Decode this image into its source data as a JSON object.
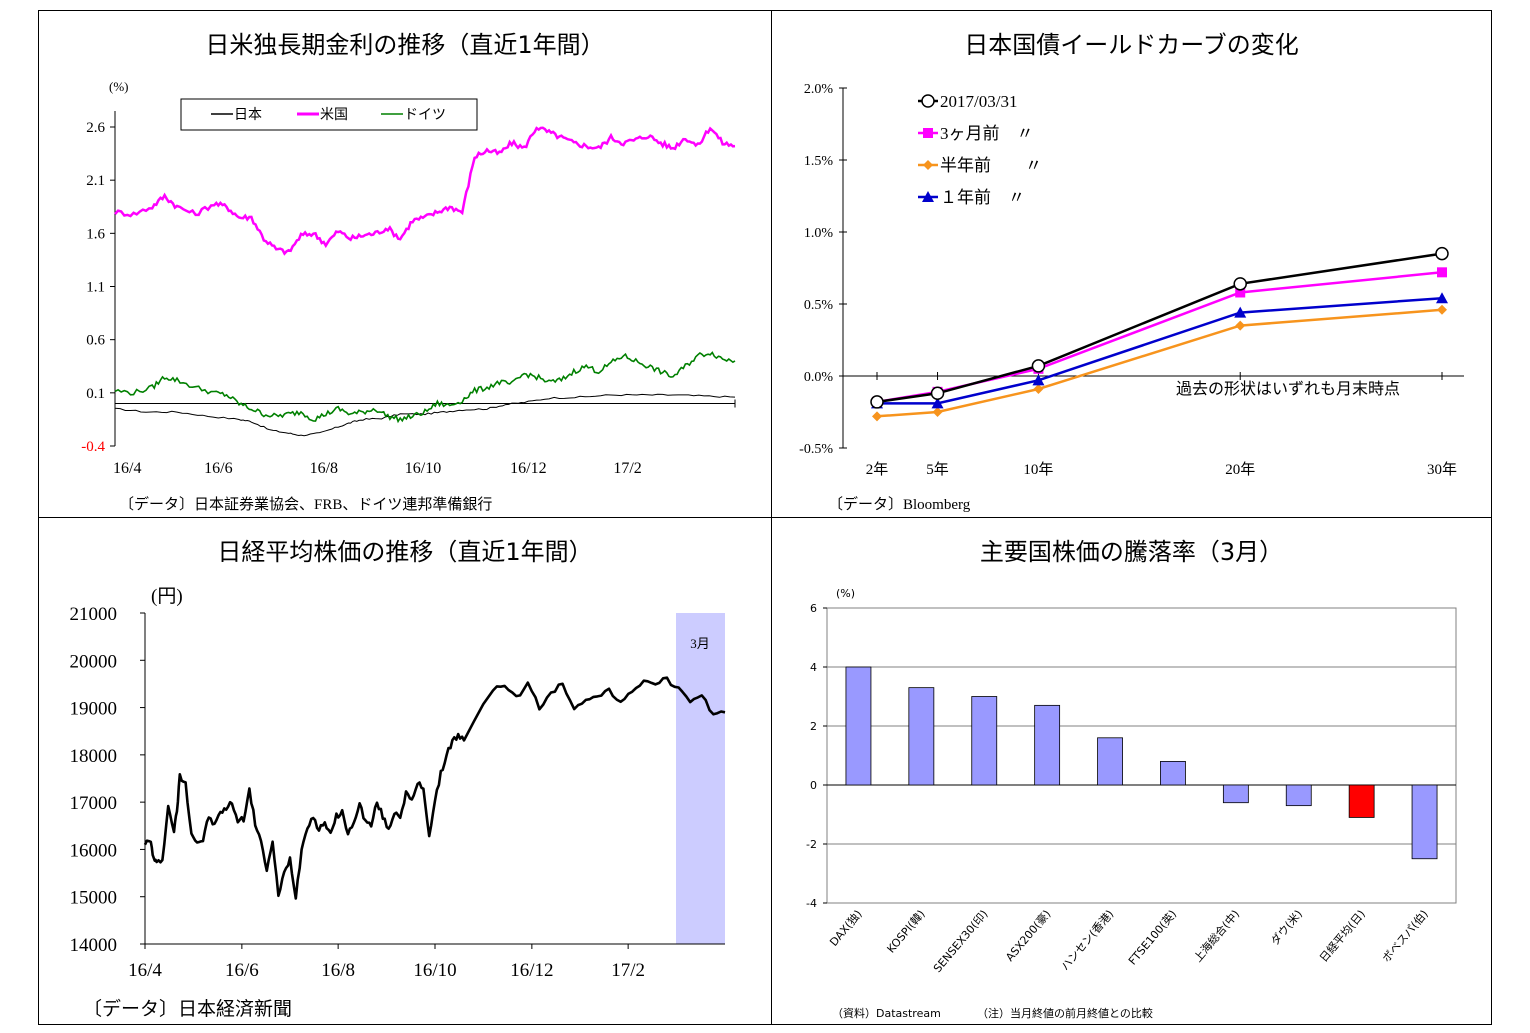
{
  "chart_data": [
    {
      "type": "line",
      "title": "日米独長期金利の推移（直近1年間）",
      "ylabel": "(%)",
      "ylim": [
        -0.4,
        2.6
      ],
      "yticks": [
        "2.6",
        "2.1",
        "1.6",
        "1.1",
        "0.6",
        "0.1",
        "-0.4"
      ],
      "xticks": [
        "16/4",
        "16/6",
        "16/8",
        "16/10",
        "16/12",
        "17/2"
      ],
      "source": "〔データ〕日本証券業協会、FRB、ドイツ連邦準備銀行",
      "series": [
        {
          "name": "日本",
          "color": "#000000",
          "x": [
            0,
            0.05,
            0.1,
            0.15,
            0.2,
            0.22,
            0.25,
            0.28,
            0.3,
            0.33,
            0.36,
            0.38,
            0.4,
            0.43,
            0.46,
            0.5,
            0.53,
            0.56,
            0.6,
            0.63,
            0.66,
            0.7,
            0.75,
            0.8,
            0.85,
            0.9,
            0.95,
            1.0
          ],
          "y": [
            -0.05,
            -0.08,
            -0.08,
            -0.12,
            -0.15,
            -0.17,
            -0.25,
            -0.28,
            -0.3,
            -0.28,
            -0.22,
            -0.18,
            -0.15,
            -0.14,
            -0.1,
            -0.1,
            -0.08,
            -0.06,
            -0.05,
            -0.01,
            0.01,
            0.05,
            0.06,
            0.08,
            0.08,
            0.08,
            0.07,
            0.06
          ]
        },
        {
          "name": "米国",
          "color": "#ff00ff",
          "x": [
            0,
            0.03,
            0.06,
            0.08,
            0.1,
            0.13,
            0.16,
            0.18,
            0.2,
            0.22,
            0.24,
            0.26,
            0.28,
            0.3,
            0.32,
            0.34,
            0.36,
            0.38,
            0.4,
            0.42,
            0.44,
            0.46,
            0.48,
            0.5,
            0.52,
            0.54,
            0.56,
            0.58,
            0.6,
            0.62,
            0.64,
            0.66,
            0.68,
            0.7,
            0.72,
            0.74,
            0.76,
            0.78,
            0.8,
            0.82,
            0.84,
            0.86,
            0.88,
            0.9,
            0.92,
            0.94,
            0.96,
            0.98,
            1.0
          ],
          "y": [
            1.8,
            1.78,
            1.85,
            1.95,
            1.85,
            1.78,
            1.88,
            1.85,
            1.75,
            1.75,
            1.55,
            1.45,
            1.42,
            1.58,
            1.6,
            1.5,
            1.62,
            1.55,
            1.58,
            1.6,
            1.65,
            1.55,
            1.72,
            1.75,
            1.8,
            1.85,
            1.8,
            2.32,
            2.38,
            2.35,
            2.45,
            2.4,
            2.6,
            2.55,
            2.5,
            2.45,
            2.42,
            2.4,
            2.5,
            2.45,
            2.48,
            2.52,
            2.45,
            2.4,
            2.5,
            2.42,
            2.6,
            2.45,
            2.42
          ]
        },
        {
          "name": "ドイツ",
          "color": "#008000",
          "x": [
            0,
            0.03,
            0.06,
            0.08,
            0.1,
            0.13,
            0.16,
            0.18,
            0.2,
            0.22,
            0.24,
            0.26,
            0.28,
            0.3,
            0.32,
            0.34,
            0.36,
            0.38,
            0.4,
            0.42,
            0.44,
            0.46,
            0.48,
            0.5,
            0.52,
            0.54,
            0.56,
            0.58,
            0.6,
            0.62,
            0.64,
            0.66,
            0.68,
            0.7,
            0.72,
            0.74,
            0.76,
            0.78,
            0.8,
            0.82,
            0.84,
            0.86,
            0.88,
            0.9,
            0.92,
            0.94,
            0.96,
            0.98,
            1.0
          ],
          "y": [
            0.12,
            0.1,
            0.15,
            0.25,
            0.22,
            0.15,
            0.1,
            0.08,
            0.0,
            -0.05,
            -0.1,
            -0.12,
            -0.1,
            -0.08,
            -0.15,
            -0.1,
            -0.05,
            -0.1,
            -0.08,
            -0.05,
            -0.12,
            -0.15,
            -0.12,
            -0.08,
            0.0,
            -0.02,
            0.03,
            0.12,
            0.15,
            0.2,
            0.18,
            0.28,
            0.25,
            0.2,
            0.22,
            0.3,
            0.35,
            0.3,
            0.38,
            0.45,
            0.4,
            0.35,
            0.3,
            0.25,
            0.35,
            0.45,
            0.48,
            0.42,
            0.4
          ]
        }
      ]
    },
    {
      "type": "line",
      "title": "日本国債イールドカーブの変化",
      "categories": [
        "2年",
        "5年",
        "10年",
        "20年",
        "30年"
      ],
      "x": [
        2,
        5,
        10,
        20,
        30
      ],
      "ylim": [
        -0.5,
        2.0
      ],
      "yticks": [
        "2.0%",
        "1.5%",
        "1.0%",
        "0.5%",
        "0.0%",
        "-0.5%"
      ],
      "annotation": "過去の形状はいずれも月末時点",
      "source": "〔データ〕Bloomberg",
      "series": [
        {
          "name": "2017/03/31",
          "color": "#000000",
          "marker": "circle",
          "values": [
            -0.18,
            -0.12,
            0.07,
            0.64,
            0.85
          ]
        },
        {
          "name": "3ヶ月前　〃",
          "color": "#ff00ff",
          "marker": "square",
          "values": [
            -0.18,
            -0.11,
            0.05,
            0.58,
            0.72
          ]
        },
        {
          "name": "半年前　　〃",
          "color": "#f7941d",
          "marker": "diamond",
          "values": [
            -0.28,
            -0.25,
            -0.09,
            0.35,
            0.46
          ]
        },
        {
          "name": "１年前　〃",
          "color": "#0000cc",
          "marker": "triangle",
          "values": [
            -0.19,
            -0.19,
            -0.03,
            0.44,
            0.54
          ]
        }
      ]
    },
    {
      "type": "line",
      "title": "日経平均株価の推移（直近1年間）",
      "ylabel": "(円)",
      "ylim": [
        14000,
        21000
      ],
      "yticks": [
        "21000",
        "20000",
        "19000",
        "18000",
        "17000",
        "16000",
        "15000",
        "14000"
      ],
      "xticks": [
        "16/4",
        "16/6",
        "16/8",
        "16/10",
        "16/12",
        "17/2"
      ],
      "highlight_label": "3月",
      "source": "〔データ〕日本経済新聞",
      "series": [
        {
          "name": "",
          "color": "#000000",
          "x": [
            0,
            0.01,
            0.015,
            0.02,
            0.03,
            0.04,
            0.05,
            0.055,
            0.06,
            0.07,
            0.08,
            0.09,
            0.1,
            0.11,
            0.12,
            0.13,
            0.14,
            0.15,
            0.16,
            0.17,
            0.18,
            0.19,
            0.2,
            0.21,
            0.22,
            0.23,
            0.24,
            0.25,
            0.26,
            0.27,
            0.28,
            0.29,
            0.3,
            0.31,
            0.32,
            0.33,
            0.34,
            0.35,
            0.36,
            0.37,
            0.38,
            0.39,
            0.4,
            0.41,
            0.42,
            0.43,
            0.44,
            0.45,
            0.46,
            0.47,
            0.48,
            0.49,
            0.5,
            0.51,
            0.52,
            0.53,
            0.54,
            0.55,
            0.6,
            0.62,
            0.64,
            0.66,
            0.68,
            0.7,
            0.72,
            0.74,
            0.76,
            0.78,
            0.8,
            0.82,
            0.84,
            0.86,
            0.88,
            0.9,
            0.92,
            0.94,
            0.96,
            0.98,
            1.0
          ],
          "y": [
            16150,
            16150,
            15800,
            15700,
            15800,
            16900,
            16400,
            16800,
            17550,
            17400,
            16350,
            16150,
            16200,
            16700,
            16500,
            16800,
            16850,
            17000,
            16600,
            16650,
            17250,
            16550,
            16200,
            15500,
            16200,
            15000,
            15500,
            15800,
            15000,
            16000,
            16500,
            16700,
            16400,
            16600,
            16300,
            16700,
            16800,
            16300,
            16600,
            16950,
            16600,
            16500,
            17000,
            16700,
            16400,
            16800,
            16700,
            17200,
            17000,
            17400,
            17300,
            16300,
            17000,
            17600,
            18000,
            18300,
            18400,
            18300,
            19400,
            19500,
            19200,
            19500,
            19000,
            19300,
            19500,
            19000,
            19200,
            19200,
            19400,
            19100,
            19300,
            19600,
            19500,
            19600,
            19400,
            19100,
            19200,
            18900,
            18900
          ]
        }
      ]
    },
    {
      "type": "bar",
      "title": "主要国株価の騰落率（3月）",
      "ylabel": "(%)",
      "ylim": [
        -4,
        6
      ],
      "yticks": [
        "6",
        "4",
        "2",
        "0",
        "-2",
        "-4"
      ],
      "categories": [
        "DAX(独)",
        "KOSPI(韓)",
        "SENSEX30(印)",
        "ASX200(豪)",
        "ハンセン(香港)",
        "FTSE100(英)",
        "上海総合(中)",
        "ダウ(米)",
        "日経平均(日)",
        "ボベスパ(伯)"
      ],
      "values": [
        4.0,
        3.3,
        3.0,
        2.7,
        1.6,
        0.8,
        -0.6,
        -0.7,
        -1.1,
        -2.5
      ],
      "colors": [
        "#9999ff",
        "#9999ff",
        "#9999ff",
        "#9999ff",
        "#9999ff",
        "#9999ff",
        "#9999ff",
        "#9999ff",
        "#ff0000",
        "#9999ff"
      ],
      "source": "（資料）Datastream",
      "note": "（注）当月終値の前月終値との比較"
    }
  ]
}
